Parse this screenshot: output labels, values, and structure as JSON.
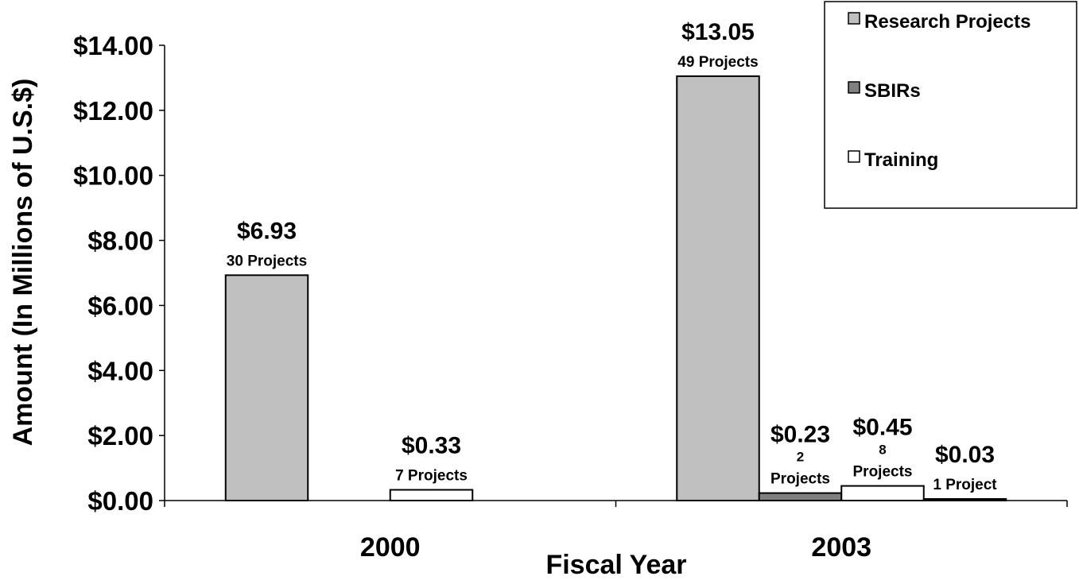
{
  "chart_data": {
    "type": "bar",
    "title": "",
    "xlabel": "Fiscal Year",
    "ylabel": "Amount (In Millions of U.S.$)",
    "ylim": [
      0,
      14
    ],
    "yticks": [
      "$0.00",
      "$2.00",
      "$4.00",
      "$6.00",
      "$8.00",
      "$10.00",
      "$12.00",
      "$14.00"
    ],
    "categories": [
      "2000",
      "2003"
    ],
    "legend_position": "top-right",
    "grid": false,
    "series": [
      {
        "name": "Research Projects",
        "color": "#c0c0c0",
        "values": [
          6.93,
          13.05
        ],
        "value_labels": [
          "$6.93",
          "$13.05"
        ],
        "count_labels": [
          "30 Projects",
          "49 Projects"
        ]
      },
      {
        "name": "SBIRs",
        "color": "#808080",
        "values": [
          null,
          0.23
        ],
        "value_labels": [
          "",
          "$0.23"
        ],
        "count_labels": [
          "",
          "2 Projects"
        ]
      },
      {
        "name": "Training",
        "color": "#ffffff",
        "values": [
          0.33,
          0.45
        ],
        "value_labels": [
          "$0.33",
          "$0.45"
        ],
        "count_labels": [
          "7 Projects",
          "8 Projects"
        ]
      },
      {
        "name": "",
        "color": "#000000",
        "values": [
          null,
          0.03
        ],
        "value_labels": [
          "",
          "$0.03"
        ],
        "count_labels": [
          "",
          "1 Project"
        ]
      }
    ]
  }
}
